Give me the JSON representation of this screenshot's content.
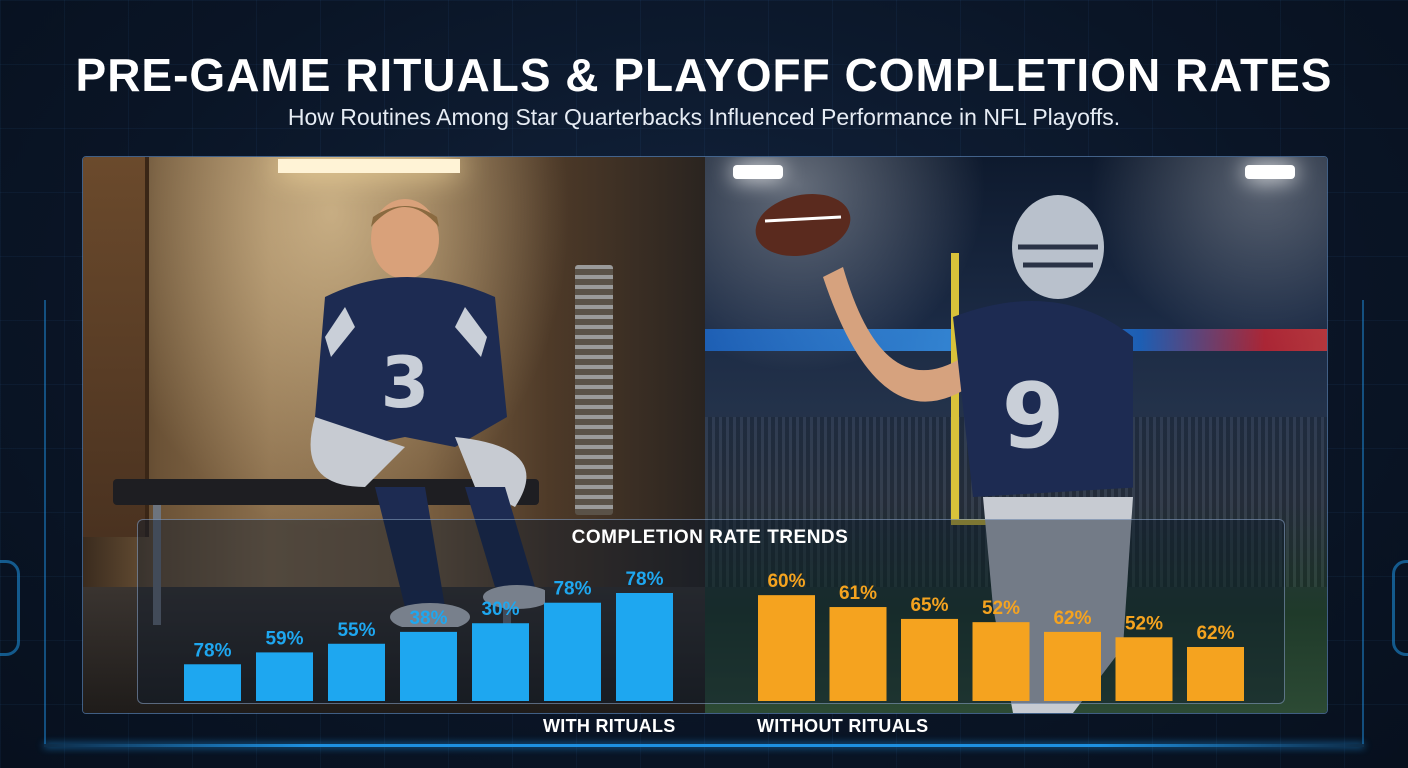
{
  "header": {
    "title": "PRE-GAME RITUALS & PLAYOFF COMPLETION RATES",
    "subtitle": "How Routines Among Star Quarterbacks Influenced Performance in NFL Playoffs."
  },
  "colors": {
    "with_rituals": "#1ea7f0",
    "without_rituals": "#f5a31f",
    "background": "#0b1628"
  },
  "chart_data": {
    "type": "bar",
    "title": "COMPLETION RATE TRENDS",
    "xlabel": "",
    "ylabel": "",
    "grid": false,
    "ylim": [
      0,
      100
    ],
    "series": [
      {
        "name": "WITH RITUALS",
        "values": [
          78,
          59,
          55,
          38,
          30,
          78,
          78
        ],
        "labels": [
          "78%",
          "59%",
          "55%",
          "38%",
          "30%",
          "78%",
          "78%"
        ],
        "bar_fraction": [
          0.34,
          0.45,
          0.53,
          0.64,
          0.72,
          0.91,
          1.0
        ]
      },
      {
        "name": "WITHOUT RITUALS",
        "values": [
          60,
          61,
          65,
          52,
          62,
          52,
          62
        ],
        "labels": [
          "60%",
          "61%",
          "65%",
          "52%",
          "62%",
          "52%",
          "62%"
        ],
        "bar_fraction": [
          0.98,
          0.87,
          0.76,
          0.73,
          0.64,
          0.59,
          0.5
        ]
      }
    ]
  }
}
